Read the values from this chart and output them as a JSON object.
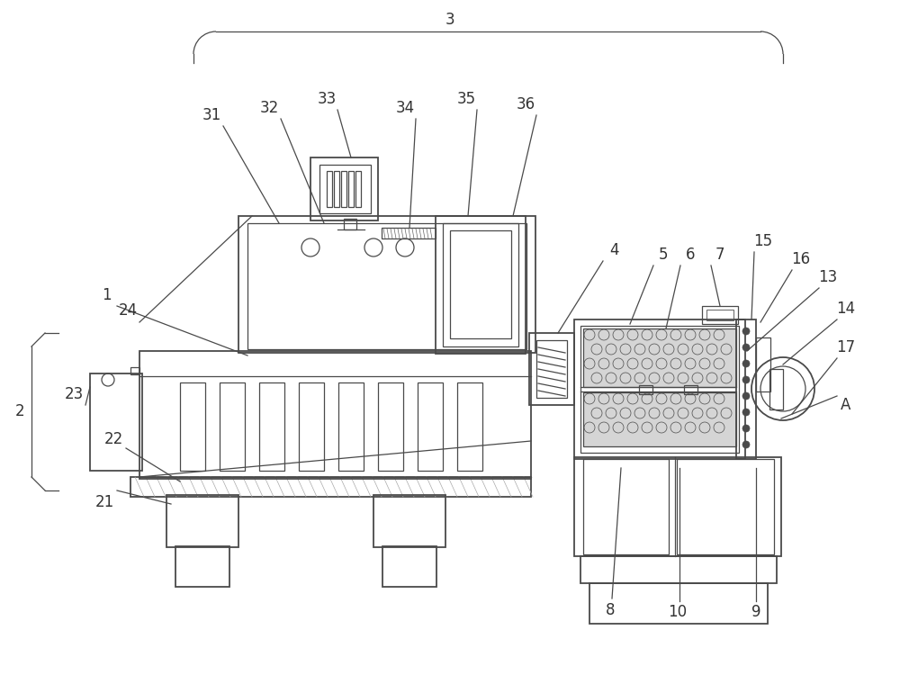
{
  "bg_color": "#ffffff",
  "lc": "#4a4a4a",
  "label_color": "#333333",
  "fs": 12,
  "fig_width": 10.0,
  "fig_height": 7.5,
  "dpi": 100
}
